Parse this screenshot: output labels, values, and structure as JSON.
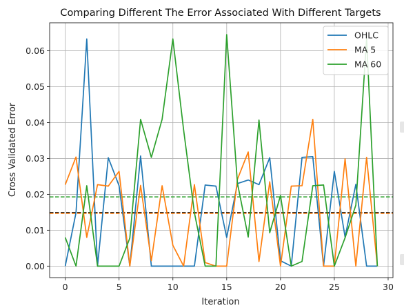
{
  "chart_data": {
    "type": "line",
    "title": "Comparing Different The Error Associated With Different Targets",
    "xlabel": "Iteration",
    "ylabel": "Cross Validated Error",
    "xlim": [
      -1.45,
      30.45
    ],
    "ylim": [
      -0.0032,
      0.0678
    ],
    "xticks": [
      0,
      5,
      10,
      15,
      20,
      25,
      30
    ],
    "yticks": [
      0.0,
      0.01,
      0.02,
      0.03,
      0.04,
      0.05,
      0.06
    ],
    "ytick_labels": [
      "0.00",
      "0.01",
      "0.02",
      "0.03",
      "0.04",
      "0.05",
      "0.06"
    ],
    "grid": true,
    "legend_position": "top-right",
    "x": [
      0,
      1,
      2,
      3,
      4,
      5,
      6,
      7,
      8,
      9,
      10,
      11,
      12,
      13,
      14,
      15,
      16,
      17,
      18,
      19,
      20,
      21,
      22,
      23,
      24,
      25,
      26,
      27,
      28,
      29
    ],
    "series": [
      {
        "name": "OHLC",
        "color": "#1f77b4",
        "values": [
          0.0,
          0.0149,
          0.0633,
          0.0,
          0.0302,
          0.0224,
          0.0,
          0.0307,
          0.0,
          0.0,
          0.0,
          0.0,
          0.0,
          0.0226,
          0.0223,
          0.008,
          0.023,
          0.024,
          0.0227,
          0.0302,
          0.0015,
          0.0,
          0.0303,
          0.0305,
          0.0,
          0.0264,
          0.0081,
          0.0228,
          0.0,
          0.0
        ]
      },
      {
        "name": "MA 5",
        "color": "#ff7f0e",
        "values": [
          0.0227,
          0.0304,
          0.008,
          0.0227,
          0.0223,
          0.0264,
          0.0,
          0.0225,
          0.0015,
          0.0224,
          0.0058,
          0.0,
          0.0227,
          0.001,
          0.0,
          0.0,
          0.0242,
          0.0318,
          0.0013,
          0.0235,
          0.0,
          0.0223,
          0.0224,
          0.0409,
          0.0,
          0.0,
          0.0299,
          0.0,
          0.0303,
          0.0
        ]
      },
      {
        "name": "MA 60",
        "color": "#2ca02c",
        "values": [
          0.008,
          0.0,
          0.0224,
          0.0,
          0.0,
          0.0,
          0.0078,
          0.0409,
          0.0303,
          0.0409,
          0.0633,
          0.0379,
          0.0149,
          0.0,
          0.0,
          0.0645,
          0.0231,
          0.0081,
          0.0407,
          0.0093,
          0.0197,
          0.0,
          0.0013,
          0.0224,
          0.0226,
          0.0,
          0.0079,
          0.017,
          0.0633,
          0.0
        ]
      }
    ],
    "hlines": [
      {
        "y": 0.0193,
        "color": "#2ca02c",
        "style": "dashed"
      },
      {
        "y": 0.0149,
        "color": "#111111",
        "style": "dashed"
      },
      {
        "y": 0.0147,
        "color": "#ff7f0e",
        "style": "dashed"
      }
    ]
  }
}
